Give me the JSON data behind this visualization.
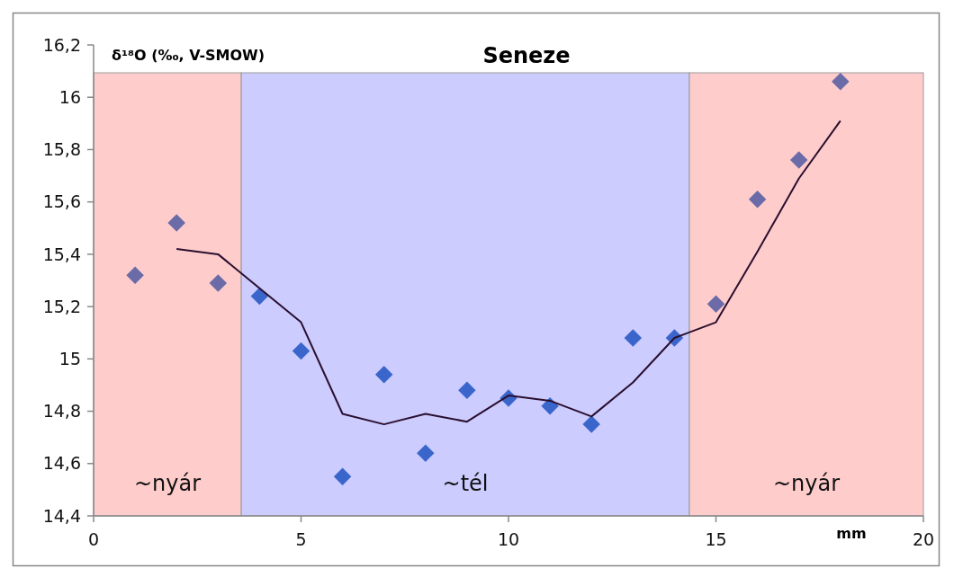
{
  "chart_data": {
    "type": "scatter",
    "title": "Seneze",
    "ylabel": "δ¹⁸O (‰, V-SMOW)",
    "xlabel": "mm",
    "xlim": [
      0,
      20
    ],
    "xticks": [
      0,
      5,
      10,
      15,
      20
    ],
    "ylim": [
      14.4,
      16.2
    ],
    "yticks": [
      {
        "value": 14.4,
        "label": "14,4"
      },
      {
        "value": 14.6,
        "label": "14,6"
      },
      {
        "value": 14.8,
        "label": "14,8"
      },
      {
        "value": 15,
        "label": "15"
      },
      {
        "value": 15.2,
        "label": "15,2"
      },
      {
        "value": 15.4,
        "label": "15,4"
      },
      {
        "value": 15.6,
        "label": "15,6"
      },
      {
        "value": 15.8,
        "label": "15,8"
      },
      {
        "value": 16,
        "label": "16"
      },
      {
        "value": 16.2,
        "label": "16,2"
      }
    ],
    "grid": false,
    "marker": "diamond",
    "bands": [
      {
        "axis": "x",
        "from": 0,
        "to": 3.56,
        "label": "~nyár",
        "color": "#ffcccc"
      },
      {
        "axis": "x",
        "from": 3.56,
        "to": 14.36,
        "label": "~tél",
        "color": "#ccccff"
      },
      {
        "axis": "x",
        "from": 14.36,
        "to": 20,
        "label": "~nyár",
        "color": "#ffcccc"
      }
    ],
    "series": [
      {
        "x": [
          1,
          2,
          3,
          4,
          5,
          6,
          7,
          8,
          9,
          10,
          11,
          12,
          13,
          14,
          15,
          16,
          17,
          18
        ],
        "values": [
          15.32,
          15.52,
          15.29,
          15.24,
          15.03,
          14.55,
          14.94,
          14.64,
          14.88,
          14.85,
          14.82,
          14.75,
          15.08,
          15.08,
          15.21,
          15.61,
          15.76,
          16.06
        ],
        "colors": [
          "#6b6ba8",
          "#6b6ba8",
          "#6b6ba8",
          "#3a66cc",
          "#3a66cc",
          "#3a66cc",
          "#3a66cc",
          "#3a66cc",
          "#3a66cc",
          "#3a66cc",
          "#3a66cc",
          "#3a66cc",
          "#3a66cc",
          "#3a66cc",
          "#6b6ba8",
          "#6b6ba8",
          "#6b6ba8",
          "#6b6ba8"
        ]
      },
      {
        "type": "line",
        "color": "#2a0f2e",
        "marker": "none",
        "line_style": "solid",
        "x": [
          2,
          3,
          4,
          5,
          6,
          7,
          8,
          9,
          10,
          11,
          12,
          13,
          14,
          15,
          16,
          17,
          18
        ],
        "values": [
          15.42,
          15.4,
          15.27,
          15.14,
          14.79,
          14.75,
          14.79,
          14.76,
          14.86,
          14.84,
          14.78,
          14.91,
          15.08,
          15.14,
          15.41,
          15.69,
          15.91
        ]
      }
    ]
  }
}
